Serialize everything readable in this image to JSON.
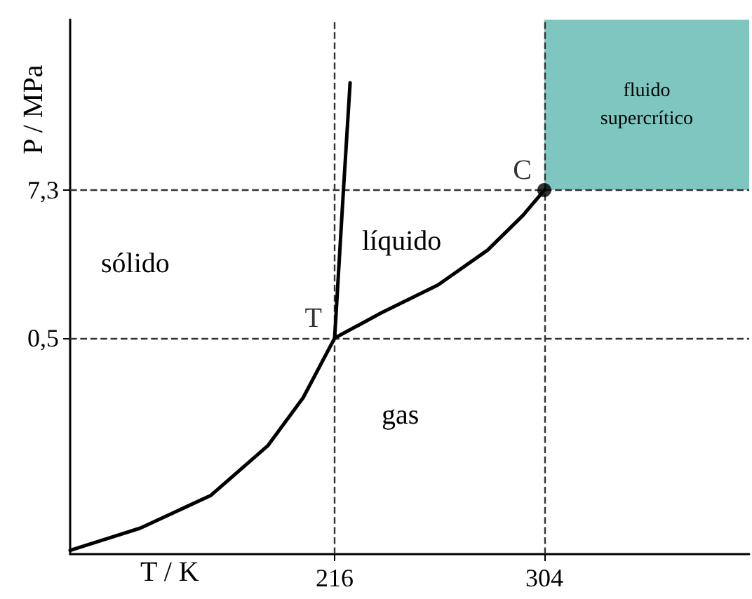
{
  "chart_data": {
    "type": "line",
    "xlabel": "T / K",
    "ylabel": "P / MPa",
    "log": "y",
    "xlim": [
      105,
      390
    ],
    "ylim": [
      0.01,
      160
    ],
    "xticks": [
      216,
      304
    ],
    "yticks": [
      {
        "value": 0.5,
        "label": "0,5"
      },
      {
        "value": 7.3,
        "label": "7,3"
      }
    ],
    "grid": false,
    "marker": "none",
    "line_style": "solid",
    "series": [
      {
        "color": "#000000",
        "x": [
          105,
          134.4,
          164.1,
          187.9,
          202.8,
          216,
          219.6,
          222.5
        ],
        "values": [
          0.0107,
          0.016,
          0.029,
          0.071,
          0.17,
          0.5,
          6.8,
          51
        ]
      },
      {
        "color": "#000000",
        "x": [
          216,
          235.6,
          259.4,
          280.2,
          295.1,
          304
        ],
        "values": [
          0.5,
          0.79,
          1.31,
          2.46,
          4.63,
          7.3
        ]
      },
      {
        "type": "scatter",
        "marker": "circle",
        "color": "#000000",
        "x": [
          304
        ],
        "values": [
          7.3
        ]
      }
    ],
    "bands": [
      {
        "axis": "x",
        "from": 304,
        "to": 390,
        "color": "#7fc6c0",
        "label": "fluido supercrítico"
      }
    ],
    "ref_lines": [
      {
        "axis": "x",
        "value": 216,
        "color": "#333333",
        "line_style": "dashed"
      },
      {
        "axis": "x",
        "value": 304,
        "color": "#333333",
        "line_style": "dashed"
      },
      {
        "axis": "y",
        "value": 0.5,
        "color": "#333333",
        "line_style": "dashed"
      },
      {
        "axis": "y",
        "value": 7.3,
        "color": "#333333",
        "line_style": "dashed"
      }
    ],
    "annotations": [
      "sólido",
      "líquido",
      "gas",
      {
        "text": "T",
        "x": 216,
        "y": 0.5
      },
      {
        "text": "C",
        "x": 304,
        "y": 7.3
      }
    ]
  }
}
